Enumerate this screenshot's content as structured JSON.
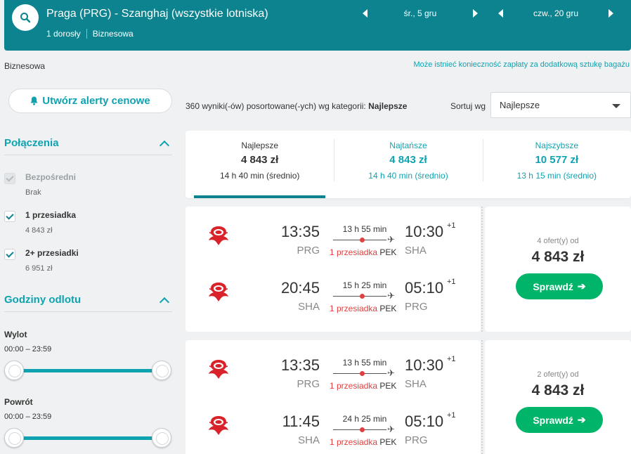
{
  "header": {
    "route": "Praga (PRG) - Szanghaj (wszystkie lotniska)",
    "passengers": "1 dorosły",
    "cabin": "Biznesowa",
    "outbound_date": "śr., 5 gru",
    "return_date": "czw., 20 gru"
  },
  "cabin_label": "Biznesowa",
  "bag_notice": "Może istnieć konieczność zapłaty za dodatkową sztukę bagażu",
  "alert_button": "Utwórz alerty cenowe",
  "filters": {
    "connections_title": "Połączenia",
    "items": [
      {
        "name": "Bezpośredni",
        "price": "Brak",
        "checked": true,
        "disabled": true
      },
      {
        "name": "1 przesiadka",
        "price": "4 843 zł",
        "checked": true,
        "disabled": false
      },
      {
        "name": "2+ przesiadki",
        "price": "6 951 zł",
        "checked": true,
        "disabled": false
      }
    ],
    "departure_title": "Godziny odlotu",
    "outbound_label": "Wylot",
    "outbound_range": "00:00 – 23:59",
    "return_label": "Powrót",
    "return_range": "00:00 – 23:59"
  },
  "results": {
    "count_text": "360 wyniki(-ów) posortowane(-ych) wg kategorii:",
    "count_category": "Najlepsze",
    "sort_label": "Sortuj wg",
    "sort_value": "Najlepsze"
  },
  "tabs": [
    {
      "label": "Najlepsze",
      "price": "4 843 zł",
      "duration": "14 h 40 min (średnio)"
    },
    {
      "label": "Najtańsze",
      "price": "4 843 zł",
      "duration": "14 h 40 min (średnio)"
    },
    {
      "label": "Najszybsze",
      "price": "10 577 zł",
      "duration": "13 h 15 min (średnio)"
    }
  ],
  "cards": [
    {
      "legs": [
        {
          "dep_time": "13:35",
          "dep_code": "PRG",
          "arr_time": "10:30",
          "arr_code": "SHA",
          "plus": "+1",
          "duration": "13 h 55 min",
          "stops": "1 przesiadka",
          "via": "PEK"
        },
        {
          "dep_time": "20:45",
          "dep_code": "SHA",
          "arr_time": "05:10",
          "arr_code": "PRG",
          "plus": "+1",
          "duration": "15 h 25 min",
          "stops": "1 przesiadka",
          "via": "PEK"
        }
      ],
      "offers": "4 ofert(y) od",
      "price": "4 843 zł",
      "button": "Sprawdź"
    },
    {
      "legs": [
        {
          "dep_time": "13:35",
          "dep_code": "PRG",
          "arr_time": "10:30",
          "arr_code": "SHA",
          "plus": "+1",
          "duration": "13 h 55 min",
          "stops": "1 przesiadka",
          "via": "PEK"
        },
        {
          "dep_time": "11:45",
          "dep_code": "SHA",
          "arr_time": "05:10",
          "arr_code": "PRG",
          "plus": "+1",
          "duration": "24 h 25 min",
          "stops": "1 przesiadka",
          "via": "PEK"
        }
      ],
      "offers": "2 ofert(y) od",
      "price": "4 843 zł",
      "button": "Sprawdź"
    }
  ],
  "colors": {
    "teal": "#0c838f",
    "accent": "#0fa3b1",
    "green": "#00b46a",
    "airline_red": "#d8232a"
  }
}
